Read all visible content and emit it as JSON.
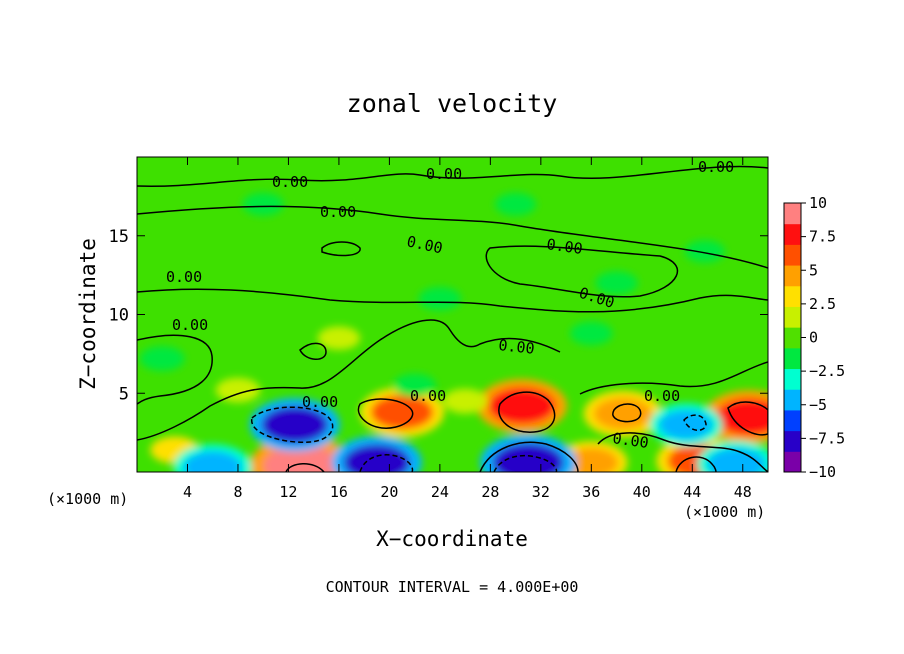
{
  "chart_data": {
    "type": "heatmap",
    "title": "zonal velocity",
    "xlabel": "X−coordinate",
    "ylabel": "Z−coordinate",
    "x_unit_left": "(×1000 m)",
    "x_unit_right": "(×1000 m)",
    "xlim": [
      0,
      50
    ],
    "ylim": [
      0,
      20
    ],
    "x_ticks": [
      4,
      8,
      12,
      16,
      20,
      24,
      28,
      32,
      36,
      40,
      44,
      48
    ],
    "y_ticks": [
      5,
      10,
      15
    ],
    "footer": "CONTOUR INTERVAL = 4.000E+00",
    "colorbar": {
      "range": [
        -10,
        10
      ],
      "tick_values": [
        10,
        7.5,
        5,
        2.5,
        0,
        -2.5,
        -5,
        -7.5,
        -10
      ],
      "tick_labels": [
        "10",
        "7.5",
        "5",
        "2.5",
        "0",
        "−2.5",
        "−5",
        "−7.5",
        "−10"
      ],
      "colors": [
        "#7a00a8",
        "#2800c8",
        "#0040ff",
        "#00b4ff",
        "#00ffd0",
        "#00e840",
        "#50e000",
        "#c8f000",
        "#ffe000",
        "#ffa000",
        "#ff5000",
        "#ff1010",
        "#ff8080"
      ]
    },
    "contour_label": "0.00",
    "blobs": [
      {
        "x": 21,
        "y": 3.8,
        "value": 6
      },
      {
        "x": 30.5,
        "y": 4.2,
        "value": 7
      },
      {
        "x": 38.5,
        "y": 3.7,
        "value": 5
      },
      {
        "x": 48.5,
        "y": 3.5,
        "value": 7
      },
      {
        "x": 13,
        "y": 0.4,
        "value": 9
      },
      {
        "x": 44.5,
        "y": 0.7,
        "value": 6
      },
      {
        "x": 3,
        "y": 1.4,
        "value": 3
      },
      {
        "x": 36,
        "y": 0.6,
        "value": 4
      },
      {
        "x": 12.5,
        "y": 3.0,
        "value": -7
      },
      {
        "x": 19,
        "y": 0.6,
        "value": -7
      },
      {
        "x": 31,
        "y": 0.6,
        "value": -8
      },
      {
        "x": 6,
        "y": 0.3,
        "value": -5
      },
      {
        "x": 43.5,
        "y": 3.0,
        "value": -4
      },
      {
        "x": 47.5,
        "y": 0.5,
        "value": -5
      },
      {
        "x": 2,
        "y": 7.2,
        "value": -2
      },
      {
        "x": 22,
        "y": 5.5,
        "value": -1.5
      },
      {
        "x": 8,
        "y": 5.2,
        "value": 2
      },
      {
        "x": 26,
        "y": 4.5,
        "value": 2
      },
      {
        "x": 24,
        "y": 11,
        "value": -1.5
      },
      {
        "x": 38,
        "y": 12,
        "value": -1.5
      },
      {
        "x": 10,
        "y": 17,
        "value": -1.2
      },
      {
        "x": 30,
        "y": 17,
        "value": -1.2
      },
      {
        "x": 45,
        "y": 14,
        "value": -1
      },
      {
        "x": 16,
        "y": 8.5,
        "value": 1.5
      },
      {
        "x": 36,
        "y": 8.8,
        "value": -1.5
      }
    ]
  }
}
